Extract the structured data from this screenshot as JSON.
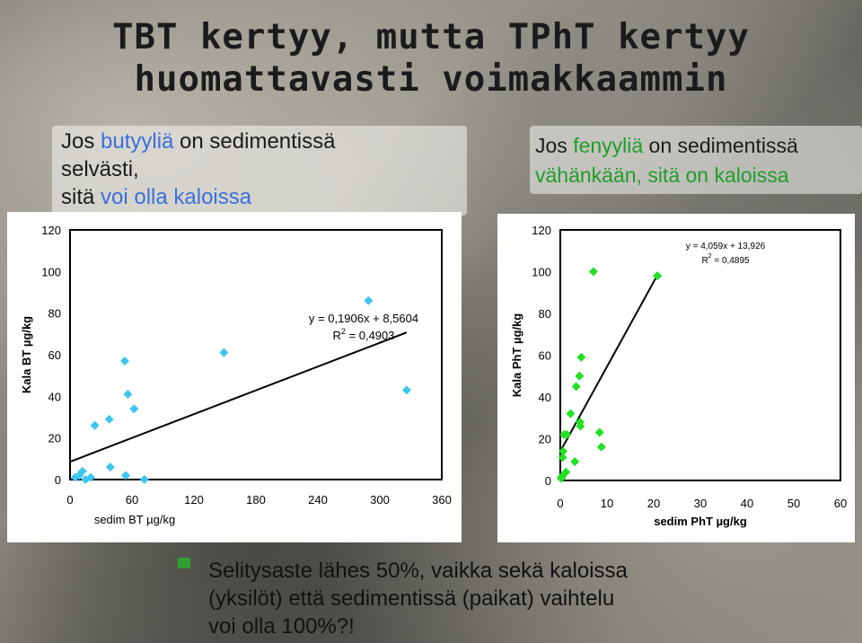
{
  "slide": {
    "title_line1": "TBT kertyy, mutta TPhT kertyy",
    "title_line2": "huomattavasti voimakkaammin",
    "left_heading": {
      "part1": "Jos ",
      "blue1": "butyyliä",
      "part2": " on sedimentissä",
      "line2": "selvästi,",
      "part3": "sitä ",
      "blue2": "voi olla kaloissa"
    },
    "right_heading": {
      "part1": "Jos ",
      "green1": "fenyyliä",
      "part2": " on sedimentissä",
      "line2": "vähänkään, sitä on kaloissa"
    },
    "conclusion_line1": "Selitysaste lähes 50%, vaikka sekä kaloissa",
    "conclusion_line2": "(yksilöt) että sedimentissä (paikat) vaihtelu",
    "conclusion_line3": "voi olla 100%?!"
  },
  "colors": {
    "bt_marker": "#3dc6f0",
    "pht_marker": "#22e022",
    "heading_blue": "#3a6fd8",
    "heading_green": "#1f9e2a",
    "bullet_green": "#2f9e2f"
  },
  "chart_data": [
    {
      "type": "scatter",
      "xlabel": "sedim BT µg/kg",
      "ylabel": "Kala BT µg/kg",
      "xlim": [
        0,
        360
      ],
      "ylim": [
        0,
        120
      ],
      "xticks": [
        "0",
        "60",
        "120",
        "180",
        "240",
        "300",
        "360"
      ],
      "yticks": [
        "0",
        "20",
        "40",
        "60",
        "80",
        "100",
        "120"
      ],
      "marker": "diamond",
      "points": [
        [
          5,
          1
        ],
        [
          9,
          2
        ],
        [
          12,
          4
        ],
        [
          15,
          0
        ],
        [
          20,
          1
        ],
        [
          24,
          26
        ],
        [
          38,
          29
        ],
        [
          39,
          6
        ],
        [
          53,
          57
        ],
        [
          54,
          2
        ],
        [
          56,
          41
        ],
        [
          62,
          34
        ],
        [
          72,
          0
        ],
        [
          149,
          61
        ],
        [
          289,
          86
        ],
        [
          326,
          43
        ]
      ],
      "trendline": {
        "slope": 0.1906,
        "intercept": 8.5604,
        "x_range": [
          0,
          326
        ]
      },
      "equation": "y = 0,1906x + 8,5604",
      "r2_prefix": "R",
      "r2_sup": "2",
      "r2_value": " = 0,4903"
    },
    {
      "type": "scatter",
      "xlabel": "sedim PhT µg/kg",
      "ylabel": "Kala PhT µg/kg",
      "xlim": [
        0,
        60
      ],
      "ylim": [
        0,
        120
      ],
      "xticks": [
        "0",
        "10",
        "20",
        "30",
        "40",
        "50",
        "60"
      ],
      "yticks": [
        "0",
        "20",
        "40",
        "60",
        "80",
        "100",
        "120"
      ],
      "marker": "diamond",
      "points": [
        [
          0.2,
          1
        ],
        [
          0.4,
          2
        ],
        [
          0.5,
          11
        ],
        [
          0.6,
          14
        ],
        [
          0.8,
          22
        ],
        [
          1.4,
          22
        ],
        [
          1.2,
          4
        ],
        [
          2.2,
          32
        ],
        [
          3.1,
          9
        ],
        [
          3.4,
          45
        ],
        [
          4.1,
          50
        ],
        [
          4.5,
          59
        ],
        [
          4.3,
          26
        ],
        [
          4.2,
          28
        ],
        [
          7.1,
          100
        ],
        [
          8.4,
          23
        ],
        [
          8.8,
          16
        ],
        [
          20.8,
          98
        ]
      ],
      "trendline": {
        "slope": 4.059,
        "intercept": 13.926,
        "x_range": [
          0,
          21
        ]
      },
      "equation": "y = 4,059x + 13,926",
      "r2_prefix": "R",
      "r2_sup": "2",
      "r2_value": " = 0,4895"
    }
  ]
}
